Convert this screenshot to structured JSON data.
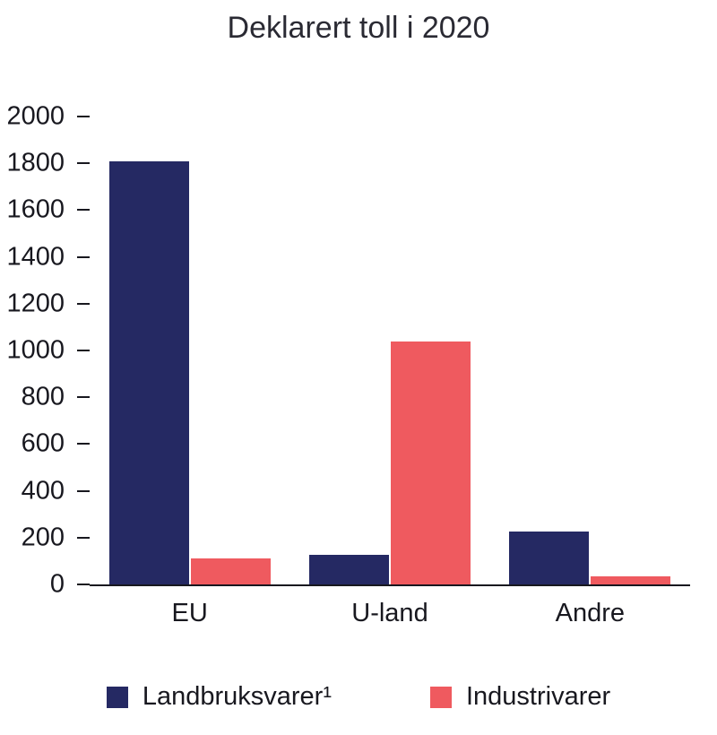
{
  "chart_data": {
    "type": "bar",
    "title": "Deklarert toll i 2020",
    "categories": [
      "EU",
      "U-land",
      "Andre"
    ],
    "series": [
      {
        "name": "Landbruksvarer¹",
        "color": "#252963",
        "values": [
          1810,
          125,
          225
        ]
      },
      {
        "name": "Industrivarer",
        "color": "#EF5A5F",
        "values": [
          110,
          1040,
          35
        ]
      }
    ],
    "xlabel": "",
    "ylabel": "",
    "ylim": [
      0,
      2000
    ],
    "yticks": [
      0,
      200,
      400,
      600,
      800,
      1000,
      1200,
      1400,
      1600,
      1800,
      2000
    ],
    "grid": false,
    "legend_position": "bottom",
    "colors": {
      "background": "#ffffff",
      "axis": "#18181f",
      "text": "#18181f"
    }
  }
}
